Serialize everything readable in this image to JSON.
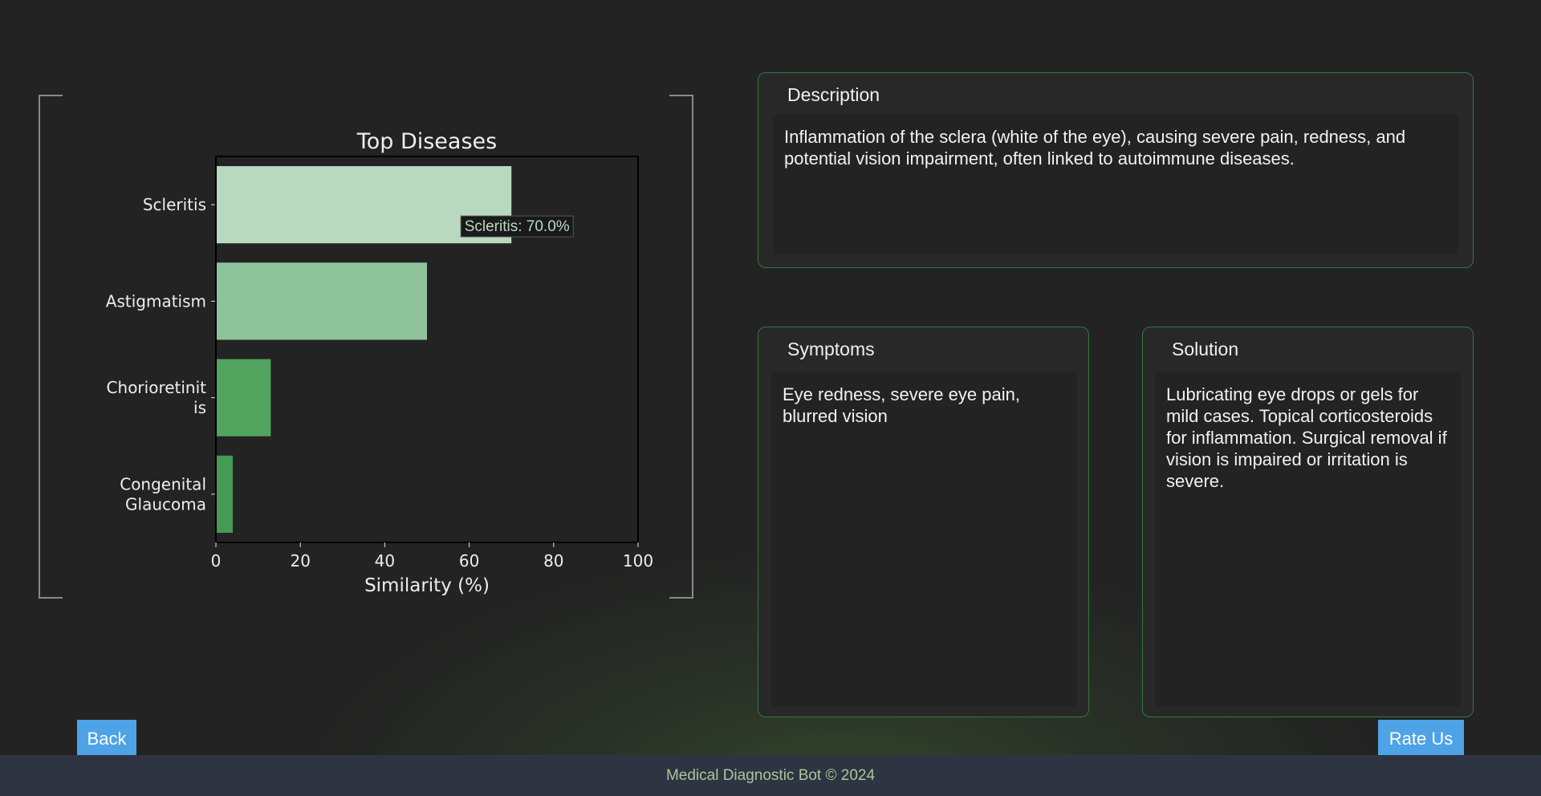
{
  "chart_data": {
    "type": "bar",
    "orientation": "horizontal",
    "title": "Top Diseases",
    "xlabel": "Similarity (%)",
    "xlim": [
      0,
      100
    ],
    "xticks": [
      0,
      20,
      40,
      60,
      80,
      100
    ],
    "categories": [
      [
        "Scleritis"
      ],
      [
        "Astigmatism"
      ],
      [
        "Chorioretinit",
        "is"
      ],
      [
        "Congenital",
        "Glaucoma"
      ]
    ],
    "values": [
      70,
      50,
      13,
      4
    ],
    "colors": [
      "#b9d9bf",
      "#8fc49b",
      "#52a45f",
      "#469b52"
    ],
    "annotation": "Scleritis: 70.0%"
  },
  "description": {
    "title": "Description",
    "text": "Inflammation of the sclera (white of the eye), causing severe pain, redness, and potential vision impairment, often linked to autoimmune diseases."
  },
  "symptoms": {
    "title": "Symptoms",
    "text": "Eye redness, severe eye pain, blurred vision"
  },
  "solution": {
    "title": "Solution",
    "text": "Lubricating eye drops or gels for mild cases. Topical corticosteroids for inflammation. Surgical removal if vision is impaired or irritation is severe."
  },
  "buttons": {
    "back": "Back",
    "rate": "Rate Us"
  },
  "footer": "Medical Diagnostic Bot © 2024"
}
